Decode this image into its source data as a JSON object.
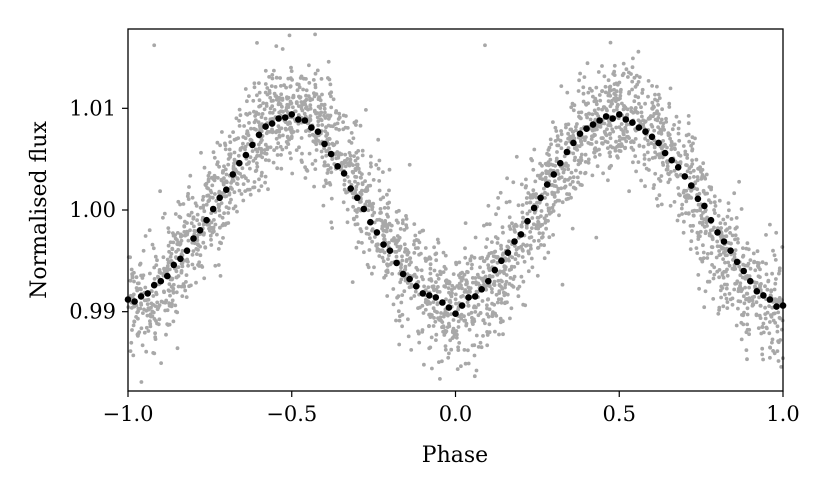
{
  "chart_data": {
    "type": "scatter",
    "title": "",
    "xlabel": "Phase",
    "ylabel": "Normalised flux",
    "xlim": [
      -1.0,
      1.0
    ],
    "ylim": [
      0.9822,
      1.0178
    ],
    "x_ticks": [
      -1.0,
      -0.5,
      0.0,
      0.5,
      1.0
    ],
    "x_tick_labels": [
      "−1.0",
      "−0.5",
      "0.0",
      "0.5",
      "1.0"
    ],
    "y_ticks": [
      0.99,
      1.0,
      1.01
    ],
    "y_tick_labels": [
      "0.99",
      "1.00",
      "1.01"
    ],
    "grid": false,
    "legend": "none",
    "colors": {
      "raw": "#a8a8a8",
      "binned": "#000000"
    },
    "series": [
      {
        "kind": "raw",
        "model": "1.0 - 0.0095*cos(2*pi*phase)",
        "n_points": 3000,
        "scatter_sigma": 0.0028,
        "values": []
      },
      {
        "kind": "binned",
        "x": [
          -1.0,
          -0.98,
          -0.96,
          -0.94,
          -0.92,
          -0.9,
          -0.88,
          -0.86,
          -0.84,
          -0.82,
          -0.8,
          -0.78,
          -0.76,
          -0.74,
          -0.72,
          -0.7,
          -0.68,
          -0.66,
          -0.64,
          -0.62,
          -0.6,
          -0.58,
          -0.56,
          -0.54,
          -0.52,
          -0.5,
          -0.48,
          -0.46,
          -0.44,
          -0.42,
          -0.4,
          -0.38,
          -0.36,
          -0.34,
          -0.32,
          -0.3,
          -0.28,
          -0.26,
          -0.24,
          -0.22,
          -0.2,
          -0.18,
          -0.16,
          -0.14,
          -0.12,
          -0.1,
          -0.08,
          -0.06,
          -0.04,
          -0.02,
          0.0,
          0.02,
          0.04,
          0.06,
          0.08,
          0.1,
          0.12,
          0.14,
          0.16,
          0.18,
          0.2,
          0.22,
          0.24,
          0.26,
          0.28,
          0.3,
          0.32,
          0.34,
          0.36,
          0.38,
          0.4,
          0.42,
          0.44,
          0.46,
          0.48,
          0.5,
          0.52,
          0.54,
          0.56,
          0.58,
          0.6,
          0.62,
          0.64,
          0.66,
          0.68,
          0.7,
          0.72,
          0.74,
          0.76,
          0.78,
          0.8,
          0.82,
          0.84,
          0.86,
          0.88,
          0.9,
          0.92,
          0.94,
          0.96,
          0.98,
          1.0
        ],
        "y": [
          0.9912,
          0.991,
          0.9915,
          0.9918,
          0.9926,
          0.993,
          0.9935,
          0.9946,
          0.9952,
          0.996,
          0.9972,
          0.998,
          0.999,
          1.0001,
          1.0012,
          1.002,
          1.0035,
          1.0046,
          1.0054,
          1.0064,
          1.0074,
          1.0082,
          1.0085,
          1.009,
          1.0091,
          1.0094,
          1.0089,
          1.0088,
          1.0081,
          1.0077,
          1.0065,
          1.0055,
          1.0043,
          1.0036,
          1.0021,
          1.0012,
          1.0001,
          0.9988,
          0.9978,
          0.9966,
          0.996,
          0.9948,
          0.9937,
          0.9932,
          0.9925,
          0.9918,
          0.9916,
          0.9914,
          0.9909,
          0.9904,
          0.9898,
          0.9906,
          0.9914,
          0.9915,
          0.9922,
          0.993,
          0.9941,
          0.995,
          0.9958,
          0.9969,
          0.9976,
          0.9989,
          1.0002,
          1.0012,
          1.0025,
          1.0035,
          1.0046,
          1.0057,
          1.0066,
          1.0075,
          1.008,
          1.0084,
          1.0088,
          1.0092,
          1.009,
          1.0094,
          1.0089,
          1.0086,
          1.0081,
          1.0077,
          1.0072,
          1.0066,
          1.0056,
          1.0049,
          1.0042,
          1.0033,
          1.0024,
          1.0011,
          1.0004,
          0.999,
          0.9978,
          0.9969,
          0.996,
          0.9949,
          0.994,
          0.993,
          0.992,
          0.9916,
          0.9912,
          0.9905,
          0.9906
        ]
      }
    ]
  }
}
